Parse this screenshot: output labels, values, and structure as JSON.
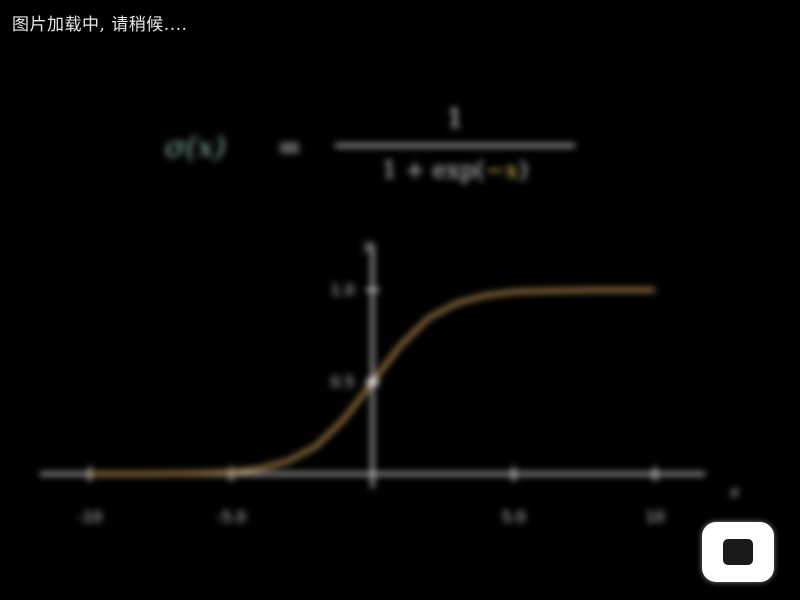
{
  "loading_text": "图片加载中, 请稍候....",
  "formula": {
    "lhs": "σ(x)",
    "equals": "=",
    "numerator": "1",
    "denominator_prefix": "1 + exp(",
    "denominator_arg": "−x",
    "denominator_suffix": ")"
  },
  "chart_data": {
    "type": "line",
    "xlabel": "x",
    "ylabel": "y",
    "xlim": [
      -10,
      10
    ],
    "ylim": [
      0,
      1
    ],
    "x_ticks": [
      "-10",
      "-5.0",
      "5.0",
      "10"
    ],
    "y_ticks": [
      "1.0",
      "0.5"
    ],
    "series": [
      {
        "x": [
          -10,
          -8,
          -6,
          -5,
          -4,
          -3,
          -2,
          -1,
          0,
          1,
          2,
          3,
          4,
          5,
          6,
          8,
          10
        ],
        "y": [
          0.0,
          0.0,
          0.005,
          0.01,
          0.03,
          0.07,
          0.15,
          0.3,
          0.5,
          0.7,
          0.85,
          0.93,
          0.97,
          0.99,
          0.995,
          1.0,
          1.0
        ]
      }
    ],
    "colors": {
      "curve": "#b48a4e",
      "axis": "#cfcfcf",
      "text": "#dddddd"
    }
  },
  "controls": {
    "play_icon": "play-icon"
  }
}
